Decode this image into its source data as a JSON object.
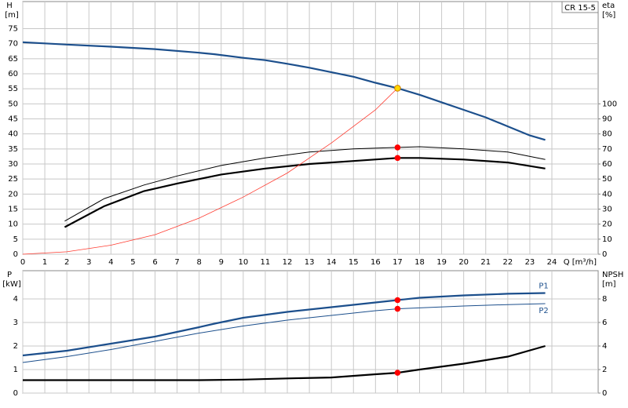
{
  "chart_data": [
    {
      "type": "line",
      "title": "CR 15-5",
      "ylabel": "H",
      "yunit": "[m]",
      "y2label": "eta",
      "y2unit": "[%]",
      "xlabel": "Q [m³/h]",
      "xlim": [
        0,
        26.1
      ],
      "ylim": [
        0,
        84
      ],
      "y2lim": [
        0,
        168
      ],
      "grid": true,
      "xticks": [
        0,
        1,
        2,
        3,
        4,
        5,
        6,
        7,
        8,
        9,
        10,
        11,
        12,
        13,
        14,
        15,
        16,
        17,
        18,
        19,
        20,
        21,
        22,
        23,
        24
      ],
      "yticks": [
        0,
        5,
        10,
        15,
        20,
        25,
        30,
        35,
        40,
        45,
        50,
        55,
        60,
        65,
        70,
        75
      ],
      "y2ticks": [
        0,
        10,
        20,
        30,
        40,
        50,
        60,
        70,
        80,
        90,
        100
      ],
      "series": [
        {
          "color": "#1c4f8c",
          "weight": "bold",
          "axis": "y",
          "x": [
            0,
            2,
            4,
            6,
            8,
            8.7,
            10,
            11,
            12,
            13,
            14,
            15,
            16,
            17,
            18,
            19,
            20,
            21,
            22,
            23,
            23.7
          ],
          "values": [
            70.5,
            69.7,
            69,
            68.2,
            67,
            66.5,
            65.3,
            64.5,
            63.3,
            62,
            60.5,
            59,
            57,
            55.2,
            53,
            50.5,
            48,
            45.5,
            42.5,
            39.5,
            38
          ]
        },
        {
          "color": "#000000",
          "weight": "normal",
          "axis": "y2",
          "x": [
            1.9,
            3.7,
            5.5,
            7,
            9,
            11,
            13,
            15,
            17,
            18,
            20,
            22,
            23.7
          ],
          "values": [
            22,
            37,
            46,
            52,
            59,
            64,
            68,
            70,
            71,
            71.5,
            70,
            68,
            63
          ]
        },
        {
          "color": "#000000",
          "weight": "bold",
          "axis": "y2",
          "x": [
            1.9,
            3.7,
            5.5,
            7,
            9,
            11,
            13,
            15,
            17,
            18,
            20,
            22,
            23.7
          ],
          "values": [
            18,
            32,
            42,
            47,
            53,
            57,
            60,
            62,
            64,
            64,
            63,
            61,
            57
          ]
        },
        {
          "color": "#ff3b30",
          "weight": "hair",
          "axis": "y",
          "x": [
            0,
            2,
            4,
            6,
            8,
            10,
            12,
            14,
            16,
            17
          ],
          "values": [
            0,
            0.8,
            3,
            6.5,
            12,
            19,
            27,
            37,
            48,
            55.2
          ]
        }
      ],
      "points": [
        {
          "x": 17,
          "y": 55.2,
          "axis": "y",
          "color": "#ffd700"
        },
        {
          "x": 17,
          "y": 71,
          "axis": "y2",
          "color": "#ff0000"
        },
        {
          "x": 17,
          "y": 64,
          "axis": "y2",
          "color": "#ff0000"
        }
      ]
    },
    {
      "type": "line",
      "ylabel": "P",
      "yunit": "[kW]",
      "y2label": "NPSH",
      "y2unit": "[m]",
      "xlim": [
        0,
        26.1
      ],
      "ylim": [
        0,
        5.2
      ],
      "y2lim": [
        0,
        10.4
      ],
      "grid": true,
      "yticks": [
        0,
        1,
        2,
        3,
        4
      ],
      "y2ticks": [
        0,
        2,
        4,
        6,
        8
      ],
      "series": [
        {
          "name": "P1",
          "color": "#1c4f8c",
          "weight": "bold",
          "axis": "y",
          "x": [
            0,
            2,
            4,
            6,
            8,
            8.7,
            10,
            12,
            14,
            16,
            17,
            18,
            20,
            22,
            23.7
          ],
          "values": [
            1.6,
            1.8,
            2.1,
            2.4,
            2.8,
            2.95,
            3.2,
            3.45,
            3.65,
            3.85,
            3.95,
            4.05,
            4.15,
            4.22,
            4.25
          ]
        },
        {
          "name": "P2",
          "color": "#1c4f8c",
          "weight": "normal",
          "axis": "y",
          "x": [
            0,
            2,
            4,
            6,
            8,
            10,
            12,
            14,
            16,
            17,
            18,
            20,
            22,
            23.7
          ],
          "values": [
            1.3,
            1.55,
            1.85,
            2.2,
            2.55,
            2.85,
            3.1,
            3.3,
            3.5,
            3.58,
            3.62,
            3.7,
            3.76,
            3.8
          ]
        },
        {
          "color": "#000000",
          "weight": "bold",
          "axis": "y2",
          "x": [
            0,
            4,
            8,
            10,
            12,
            14,
            16,
            17,
            18,
            20,
            22,
            23.7
          ],
          "values": [
            1.1,
            1.1,
            1.1,
            1.15,
            1.25,
            1.33,
            1.6,
            1.73,
            2,
            2.5,
            3.1,
            4
          ]
        }
      ],
      "points": [
        {
          "x": 17,
          "y": 3.95,
          "axis": "y",
          "color": "#ff0000"
        },
        {
          "x": 17,
          "y": 3.58,
          "axis": "y",
          "color": "#ff0000"
        },
        {
          "x": 17,
          "y": 1.73,
          "axis": "y2",
          "color": "#ff0000"
        }
      ]
    }
  ]
}
